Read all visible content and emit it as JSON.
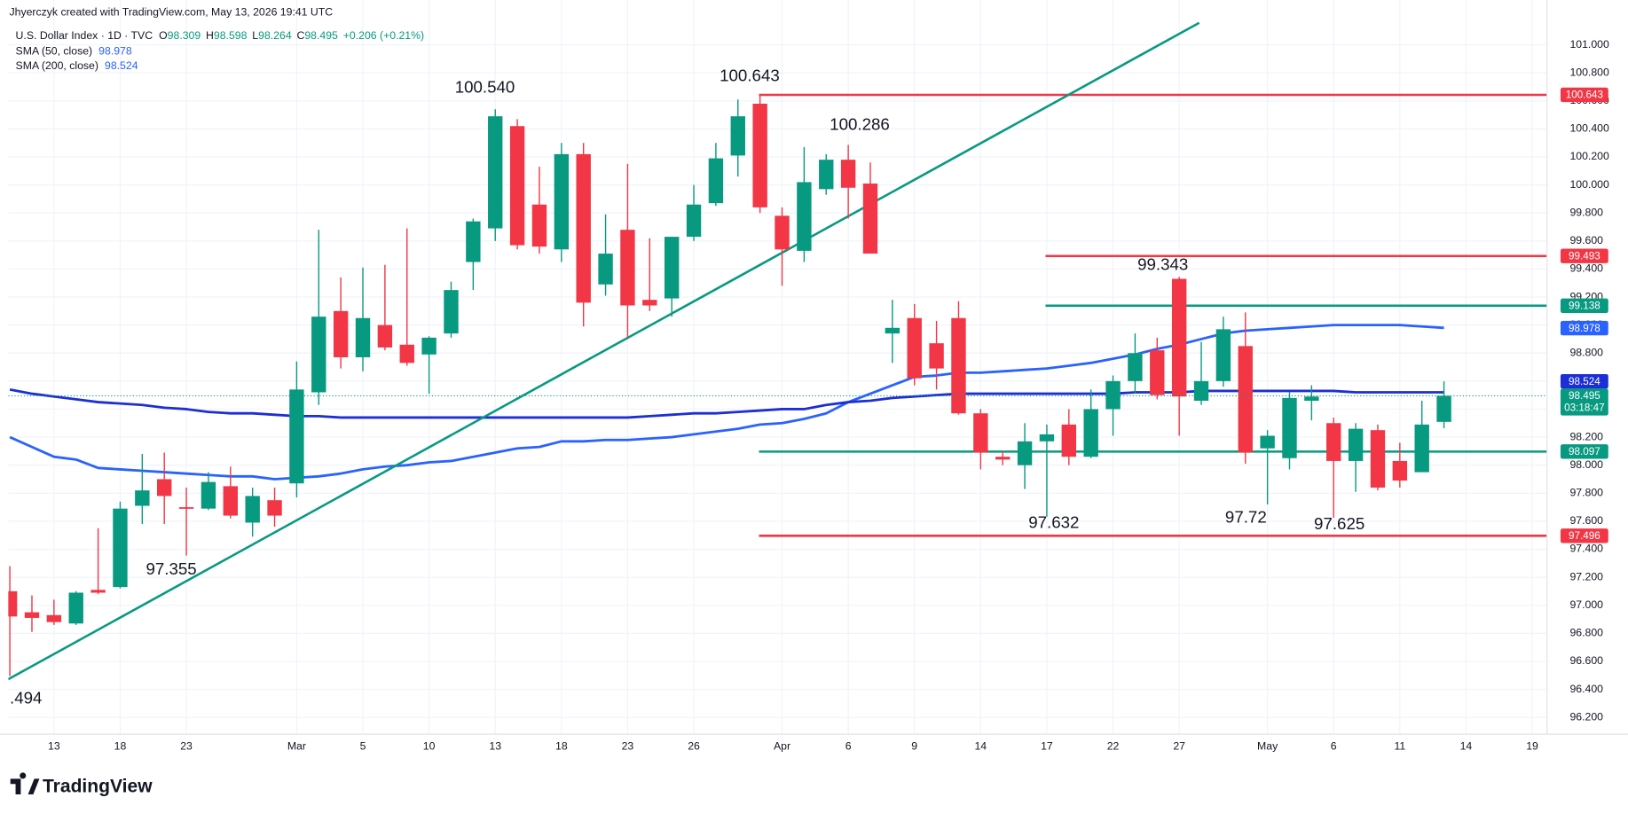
{
  "header": "Jhyerczyk created with TradingView.com, May 13, 2026 19:41 UTC",
  "footer": "TradingView",
  "chart_data": {
    "type": "candlestick",
    "symbol": "U.S. Dollar Index · 1D · TVC",
    "ohlc_labels": [
      "O",
      "H",
      "L",
      "C"
    ],
    "change_label": "+0.206 (+0.21%)",
    "countdown": "03:18:47",
    "up_color": "#089981",
    "down_color": "#f23645",
    "grid": true,
    "categories": [
      null,
      null,
      "13",
      null,
      null,
      "18",
      null,
      null,
      "23",
      null,
      null,
      null,
      null,
      "Mar",
      null,
      null,
      "5",
      null,
      null,
      "10",
      null,
      null,
      "13",
      null,
      null,
      "18",
      null,
      null,
      "23",
      null,
      null,
      "26",
      null,
      null,
      null,
      "Apr",
      null,
      null,
      "6",
      null,
      null,
      "9",
      null,
      null,
      "14",
      null,
      null,
      "17",
      null,
      null,
      "22",
      null,
      null,
      "27",
      null,
      null,
      null,
      "May",
      null,
      null,
      "6",
      null,
      null,
      "11",
      null,
      null,
      "14",
      null,
      null,
      "19"
    ],
    "open": [
      97.1,
      96.95,
      96.93,
      96.87,
      97.11,
      97.13,
      97.71,
      97.9,
      97.7,
      97.69,
      97.85,
      97.59,
      97.75,
      97.87,
      98.52,
      99.1,
      98.77,
      99.0,
      98.86,
      98.79,
      98.94,
      99.45,
      99.69,
      100.42,
      99.86,
      99.54,
      100.22,
      99.29,
      99.68,
      99.18,
      99.19,
      99.63,
      99.87,
      100.21,
      100.58,
      99.78,
      99.53,
      99.97,
      100.18,
      100.01,
      98.94,
      99.05,
      98.87,
      99.05,
      98.37,
      98.06,
      98.0,
      98.17,
      98.29,
      98.06,
      98.4,
      98.6,
      98.82,
      99.33,
      98.46,
      98.6,
      98.85,
      98.12,
      98.05,
      98.46,
      98.3,
      98.03,
      98.25,
      98.03,
      97.95,
      98.309,
      null,
      null,
      null,
      null
    ],
    "high": [
      97.28,
      97.07,
      97.04,
      97.1,
      97.55,
      97.74,
      98.08,
      98.09,
      97.84,
      97.95,
      97.99,
      97.84,
      97.84,
      98.74,
      99.68,
      99.34,
      99.41,
      99.43,
      99.69,
      98.92,
      99.31,
      99.76,
      100.54,
      100.47,
      100.13,
      100.3,
      100.3,
      99.79,
      100.15,
      99.62,
      99.63,
      100.0,
      100.3,
      100.61,
      100.643,
      99.84,
      100.27,
      100.22,
      100.286,
      100.16,
      99.18,
      99.15,
      99.03,
      99.17,
      98.4,
      98.1,
      98.3,
      98.29,
      98.4,
      98.54,
      98.64,
      98.94,
      98.91,
      99.343,
      98.88,
      99.06,
      99.09,
      98.25,
      98.52,
      98.57,
      98.34,
      98.3,
      98.29,
      98.16,
      98.46,
      98.598,
      null,
      null,
      null,
      null
    ],
    "low": [
      96.494,
      96.81,
      96.86,
      96.86,
      97.08,
      97.12,
      97.58,
      97.58,
      97.355,
      97.68,
      97.62,
      97.49,
      97.56,
      97.77,
      98.43,
      98.69,
      98.67,
      98.82,
      98.71,
      98.51,
      98.91,
      99.25,
      99.6,
      99.54,
      99.51,
      99.45,
      98.99,
      99.21,
      98.91,
      99.1,
      99.06,
      99.6,
      99.85,
      100.06,
      99.8,
      99.28,
      99.45,
      99.93,
      99.76,
      99.51,
      98.73,
      98.57,
      98.54,
      98.36,
      97.97,
      98.0,
      97.83,
      97.632,
      98.0,
      98.05,
      98.21,
      98.51,
      98.47,
      98.21,
      98.43,
      98.56,
      98.01,
      97.72,
      97.97,
      98.32,
      97.625,
      97.81,
      97.82,
      97.84,
      97.95,
      98.264,
      null,
      null,
      null,
      null
    ],
    "close": [
      96.92,
      96.91,
      96.88,
      97.09,
      97.09,
      97.69,
      97.82,
      97.78,
      97.69,
      97.88,
      97.64,
      97.78,
      97.64,
      98.54,
      99.06,
      98.77,
      99.05,
      98.84,
      98.73,
      98.91,
      99.25,
      99.74,
      100.49,
      99.57,
      99.56,
      100.22,
      99.16,
      99.51,
      99.14,
      99.14,
      99.63,
      99.86,
      100.19,
      100.49,
      99.84,
      99.54,
      100.02,
      100.18,
      99.98,
      99.51,
      98.98,
      98.62,
      98.69,
      98.37,
      98.09,
      98.04,
      98.17,
      98.22,
      98.06,
      98.4,
      98.6,
      98.8,
      98.5,
      98.49,
      98.6,
      98.97,
      98.09,
      98.21,
      98.48,
      98.49,
      98.03,
      98.26,
      97.84,
      97.89,
      98.29,
      98.495,
      null,
      null,
      null,
      null
    ],
    "series": [
      {
        "name": "SMA (50, close)",
        "color": "#2962ff",
        "last": 98.978,
        "values": [
          98.2,
          98.13,
          98.06,
          98.04,
          97.98,
          97.97,
          97.96,
          97.95,
          97.94,
          97.93,
          97.92,
          97.92,
          97.9,
          97.91,
          97.92,
          97.94,
          97.97,
          97.99,
          98.0,
          98.02,
          98.03,
          98.06,
          98.09,
          98.12,
          98.13,
          98.17,
          98.17,
          98.18,
          98.18,
          98.19,
          98.2,
          98.22,
          98.24,
          98.26,
          98.29,
          98.3,
          98.33,
          98.37,
          98.45,
          98.51,
          98.57,
          98.63,
          98.64,
          98.66,
          98.66,
          98.67,
          98.68,
          98.69,
          98.71,
          98.73,
          98.76,
          98.79,
          98.83,
          98.86,
          98.9,
          98.94,
          98.96,
          98.97,
          98.98,
          98.99,
          99.0,
          99.0,
          99.0,
          99.0,
          98.99,
          98.98,
          null,
          null,
          null,
          null
        ]
      },
      {
        "name": "SMA (200, close)",
        "color": "#1c2fd6",
        "last": 98.524,
        "values": [
          98.54,
          98.51,
          98.49,
          98.47,
          98.45,
          98.44,
          98.43,
          98.41,
          98.4,
          98.38,
          98.37,
          98.37,
          98.36,
          98.35,
          98.35,
          98.34,
          98.34,
          98.34,
          98.34,
          98.34,
          98.34,
          98.34,
          98.34,
          98.34,
          98.34,
          98.34,
          98.34,
          98.34,
          98.34,
          98.35,
          98.36,
          98.37,
          98.37,
          98.38,
          98.39,
          98.4,
          98.4,
          98.43,
          98.45,
          98.46,
          98.48,
          98.49,
          98.5,
          98.51,
          98.51,
          98.51,
          98.51,
          98.51,
          98.51,
          98.51,
          98.51,
          98.52,
          98.52,
          98.52,
          98.53,
          98.53,
          98.53,
          98.53,
          98.53,
          98.53,
          98.53,
          98.52,
          98.52,
          98.52,
          98.52,
          98.52,
          null,
          null,
          null,
          null
        ]
      }
    ],
    "levels": [
      {
        "value": 100.643,
        "color": "#f23645"
      },
      {
        "value": 99.493,
        "color": "#f23645"
      },
      {
        "value": 99.138,
        "color": "#089981"
      },
      {
        "value": 98.097,
        "color": "#089981"
      },
      {
        "value": 97.496,
        "color": "#f23645"
      }
    ],
    "annotations": [
      "100.540",
      "100.643",
      "100.286",
      "99.343",
      "97.632",
      "97.72",
      "97.625",
      "97.355",
      ".494"
    ],
    "ylim": [
      96.08,
      101.32
    ],
    "yticks": [
      {
        "value": 96.2,
        "label": "96.200"
      },
      {
        "value": 96.4,
        "label": "96.400"
      },
      {
        "value": 96.6,
        "label": "96.600"
      },
      {
        "value": 96.8,
        "label": "96.800"
      },
      {
        "value": 97.0,
        "label": "97.000"
      },
      {
        "value": 97.2,
        "label": "97.200"
      },
      {
        "value": 97.4,
        "label": "97.400"
      },
      {
        "value": 97.6,
        "label": "97.600"
      },
      {
        "value": 97.8,
        "label": "97.800"
      },
      {
        "value": 98.0,
        "label": "98.000"
      },
      {
        "value": 98.2,
        "label": "98.200"
      },
      {
        "value": 98.4,
        "label": "98.400"
      },
      {
        "value": 98.6,
        "label": "98.600"
      },
      {
        "value": 98.8,
        "label": "98.800"
      },
      {
        "value": 99.0,
        "label": "99.000"
      },
      {
        "value": 99.2,
        "label": "99.200"
      },
      {
        "value": 99.4,
        "label": "99.400"
      },
      {
        "value": 99.6,
        "label": "99.600"
      },
      {
        "value": 99.8,
        "label": "99.800"
      },
      {
        "value": 100.0,
        "label": "100.000"
      },
      {
        "value": 100.2,
        "label": "100.200"
      },
      {
        "value": 100.4,
        "label": "100.400"
      },
      {
        "value": 100.6,
        "label": "100.600"
      },
      {
        "value": 100.8,
        "label": "100.800"
      },
      {
        "value": 101.0,
        "label": "101.000"
      }
    ]
  }
}
